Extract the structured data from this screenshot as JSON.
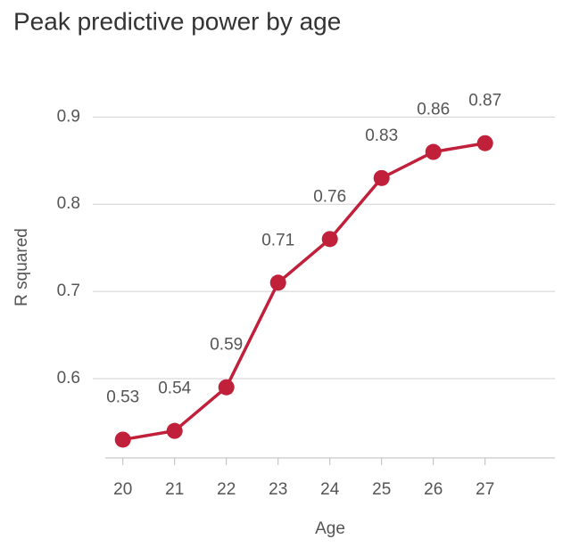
{
  "chart_data": {
    "type": "line",
    "title": "Peak predictive power by age",
    "x_label": "Age",
    "y_label": "R squared",
    "x": [
      20,
      21,
      22,
      23,
      24,
      25,
      26,
      27
    ],
    "series": [
      {
        "name": "R squared",
        "color": "#c0203a",
        "values": [
          0.53,
          0.54,
          0.59,
          0.71,
          0.76,
          0.83,
          0.86,
          0.87
        ]
      }
    ],
    "xlim": [
      19.66,
      28.35
    ],
    "xticks": [
      20,
      21,
      22,
      23,
      24,
      25,
      26,
      27
    ],
    "ylim": [
      0.509,
      0.93
    ],
    "yticks": [
      0.6,
      0.7,
      0.8,
      0.9
    ],
    "grid": true
  }
}
